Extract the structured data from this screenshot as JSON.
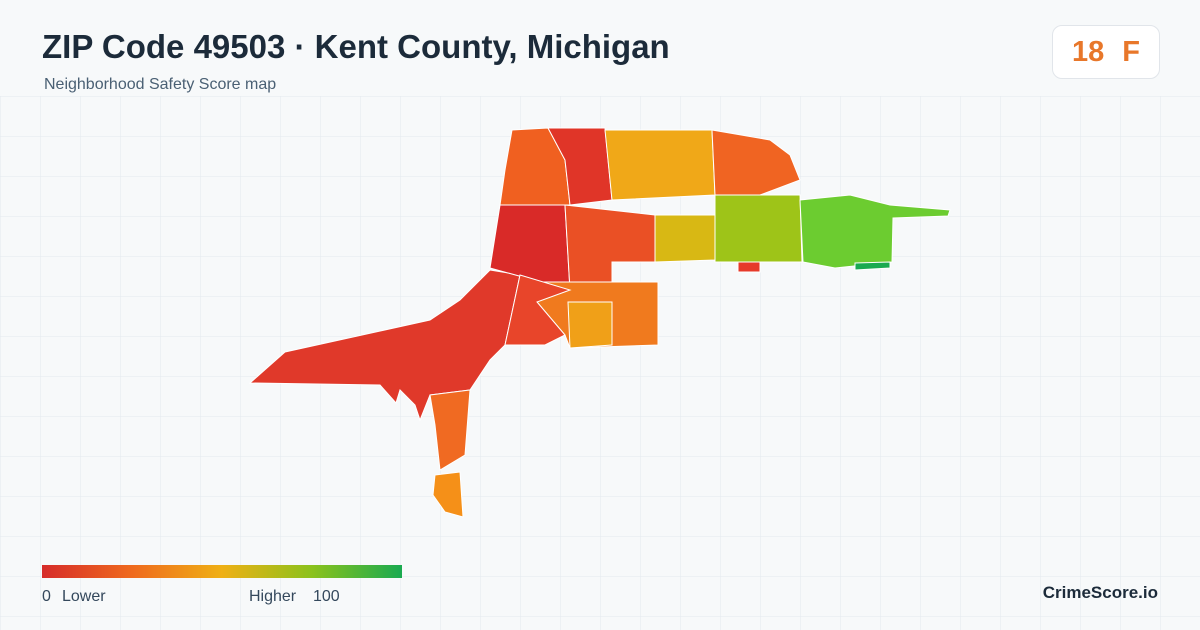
{
  "header": {
    "title": "ZIP Code 49503 · Kent County, Michigan",
    "subtitle": "Neighborhood Safety Score map"
  },
  "score": {
    "value": "18",
    "grade": "F"
  },
  "legend": {
    "low_value": "0",
    "low_label": "Lower",
    "high_label": "Higher",
    "high_value": "100"
  },
  "brand": "CrimeScore.io"
}
